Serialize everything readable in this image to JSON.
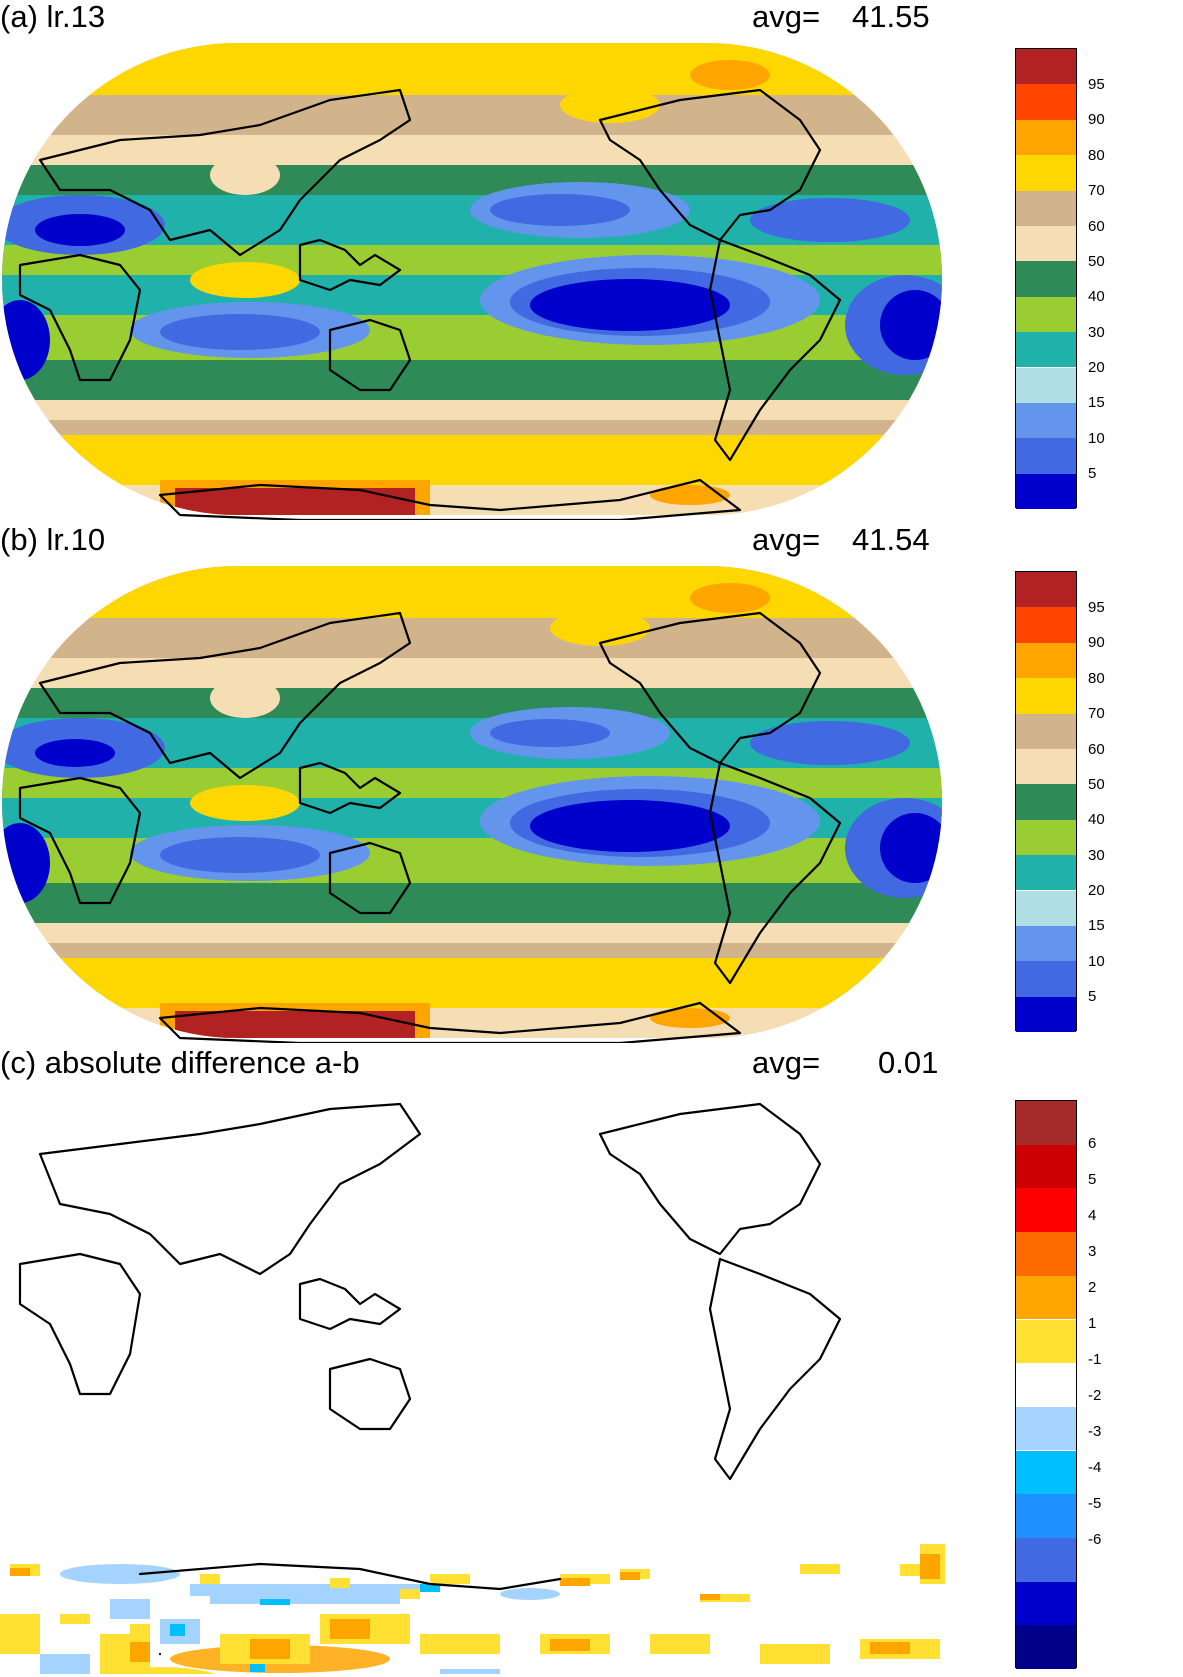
{
  "panels": [
    {
      "id": "a",
      "title": "(a) lr.13",
      "avg_label": "avg=",
      "avg_value": "41.55",
      "colorbar": {
        "labels": [
          "95",
          "90",
          "80",
          "70",
          "60",
          "50",
          "40",
          "30",
          "20",
          "15",
          "10",
          "5"
        ],
        "colors": [
          "#b22222",
          "#ff4500",
          "#ffa500",
          "#ffd700",
          "#d2b48c",
          "#f5deb3",
          "#2e8b57",
          "#9acd32",
          "#20b2aa",
          "#b0e0e6",
          "#6495ed",
          "#4169e1",
          "#0000cd"
        ]
      }
    },
    {
      "id": "b",
      "title": "(b) lr.10",
      "avg_label": "avg=",
      "avg_value": "41.54",
      "colorbar": {
        "labels": [
          "95",
          "90",
          "80",
          "70",
          "60",
          "50",
          "40",
          "30",
          "20",
          "15",
          "10",
          "5"
        ],
        "colors": [
          "#b22222",
          "#ff4500",
          "#ffa500",
          "#ffd700",
          "#d2b48c",
          "#f5deb3",
          "#2e8b57",
          "#9acd32",
          "#20b2aa",
          "#b0e0e6",
          "#6495ed",
          "#4169e1",
          "#0000cd"
        ]
      }
    },
    {
      "id": "c",
      "title": "(c) absolute difference a-b",
      "avg_label": "avg=",
      "avg_value": "0.01",
      "colorbar": {
        "labels": [
          "6",
          "5",
          "4",
          "3",
          "2",
          "1",
          "-1",
          "-2",
          "-3",
          "-4",
          "-5",
          "-6"
        ],
        "colors": [
          "#a52a2a",
          "#cd0000",
          "#ff0000",
          "#ff6a00",
          "#ffa500",
          "#ffe033",
          "#ffffff",
          "#a4d3ff",
          "#00bfff",
          "#1e90ff",
          "#4169e1",
          "#0000cd",
          "#00008b"
        ]
      }
    }
  ]
}
